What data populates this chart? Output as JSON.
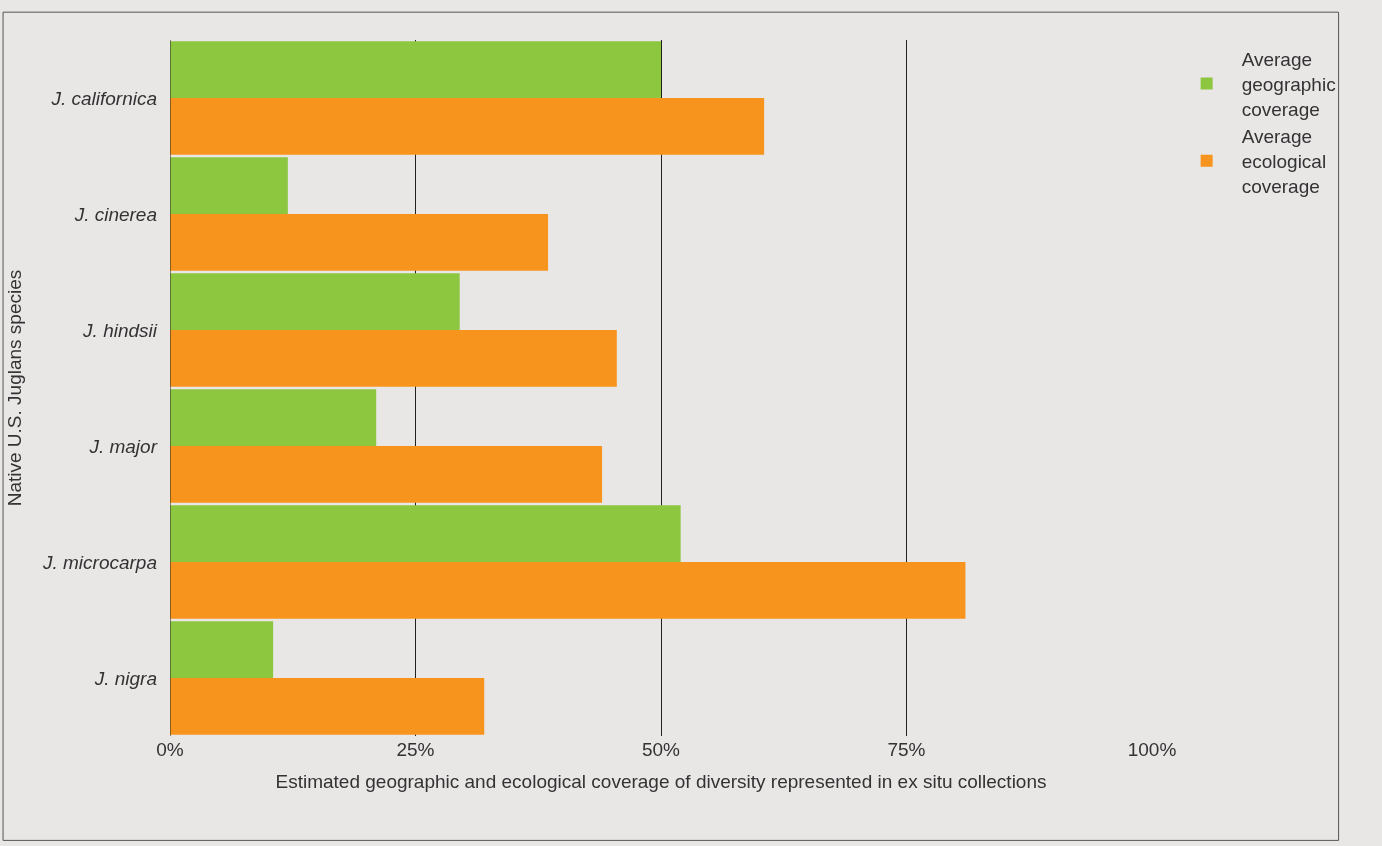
{
  "chart_data": {
    "type": "bar",
    "orientation": "horizontal",
    "categories": [
      "J. californica",
      "J. cinerea",
      "J. hindsii",
      "J. major",
      "J. microcarpa",
      "J. nigra"
    ],
    "series": [
      {
        "name": "Average geographic coverage",
        "color": "#8dc63f",
        "values": [
          50,
          12,
          29.5,
          21,
          52,
          10.5
        ]
      },
      {
        "name": "Average ecological coverage",
        "color": "#f7941d",
        "values": [
          60.5,
          38.5,
          45.5,
          44,
          81,
          32
        ]
      }
    ],
    "xlim": [
      0,
      100
    ],
    "xticks": [
      {
        "value": 0,
        "label": "0%"
      },
      {
        "value": 25,
        "label": "25%"
      },
      {
        "value": 50,
        "label": "50%"
      },
      {
        "value": 75,
        "label": "75%"
      },
      {
        "value": 100,
        "label": "100%"
      }
    ],
    "xlabel": "Estimated geographic and ecological coverage of diversity represented in ex situ collections",
    "ylabel": "Native U.S. Juglans species",
    "grid": "x",
    "legend": "top right"
  }
}
